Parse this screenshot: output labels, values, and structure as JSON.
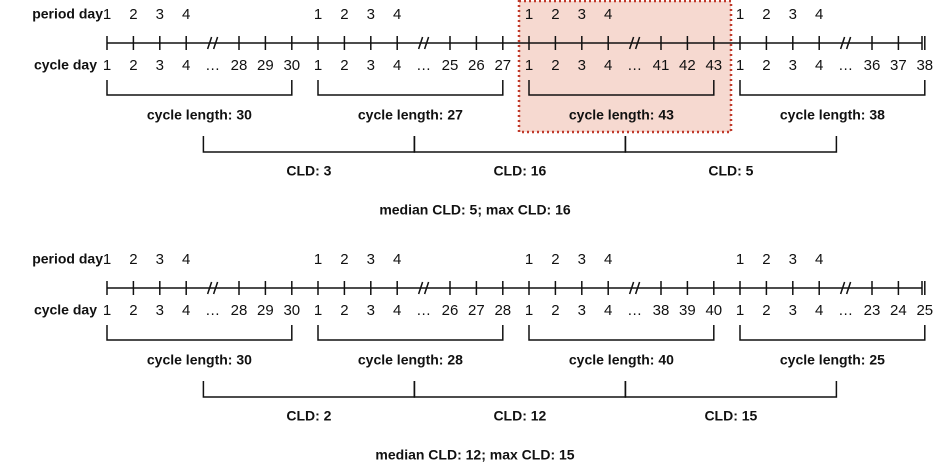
{
  "panels": [
    {
      "row_labels": {
        "period": "period day",
        "cycle": "cycle day"
      },
      "highlighted_cycle": 2,
      "cycles": [
        {
          "period_days": [
            "1",
            "2",
            "3",
            "4"
          ],
          "cycle_days": [
            "1",
            "2",
            "3",
            "4",
            "…",
            "28",
            "29",
            "30"
          ],
          "length_label": "cycle length: 30"
        },
        {
          "period_days": [
            "1",
            "2",
            "3",
            "4"
          ],
          "cycle_days": [
            "1",
            "2",
            "3",
            "4",
            "…",
            "25",
            "26",
            "27"
          ],
          "length_label": "cycle length: 27"
        },
        {
          "period_days": [
            "1",
            "2",
            "3",
            "4"
          ],
          "cycle_days": [
            "1",
            "2",
            "3",
            "4",
            "…",
            "41",
            "42",
            "43"
          ],
          "length_label": "cycle length: 43"
        },
        {
          "period_days": [
            "1",
            "2",
            "3",
            "4"
          ],
          "cycle_days": [
            "1",
            "2",
            "3",
            "4",
            "…",
            "36",
            "37",
            "38"
          ],
          "length_label": "cycle length: 38"
        }
      ],
      "cld_labels": [
        "CLD: 3",
        "CLD: 16",
        "CLD: 5"
      ],
      "summary": "median CLD: 5; max CLD: 16"
    },
    {
      "row_labels": {
        "period": "period day",
        "cycle": "cycle day"
      },
      "cycles": [
        {
          "period_days": [
            "1",
            "2",
            "3",
            "4"
          ],
          "cycle_days": [
            "1",
            "2",
            "3",
            "4",
            "…",
            "28",
            "29",
            "30"
          ],
          "length_label": "cycle length: 30"
        },
        {
          "period_days": [
            "1",
            "2",
            "3",
            "4"
          ],
          "cycle_days": [
            "1",
            "2",
            "3",
            "4",
            "…",
            "26",
            "27",
            "28"
          ],
          "length_label": "cycle length: 28"
        },
        {
          "period_days": [
            "1",
            "2",
            "3",
            "4"
          ],
          "cycle_days": [
            "1",
            "2",
            "3",
            "4",
            "…",
            "38",
            "39",
            "40"
          ],
          "length_label": "cycle length: 40"
        },
        {
          "period_days": [
            "1",
            "2",
            "3",
            "4"
          ],
          "cycle_days": [
            "1",
            "2",
            "3",
            "4",
            "…",
            "23",
            "24",
            "25"
          ],
          "length_label": "cycle length: 25"
        }
      ],
      "cld_labels": [
        "CLD: 2",
        "CLD: 12",
        "CLD: 15"
      ],
      "summary": "median CLD: 12; max CLD: 15"
    }
  ]
}
